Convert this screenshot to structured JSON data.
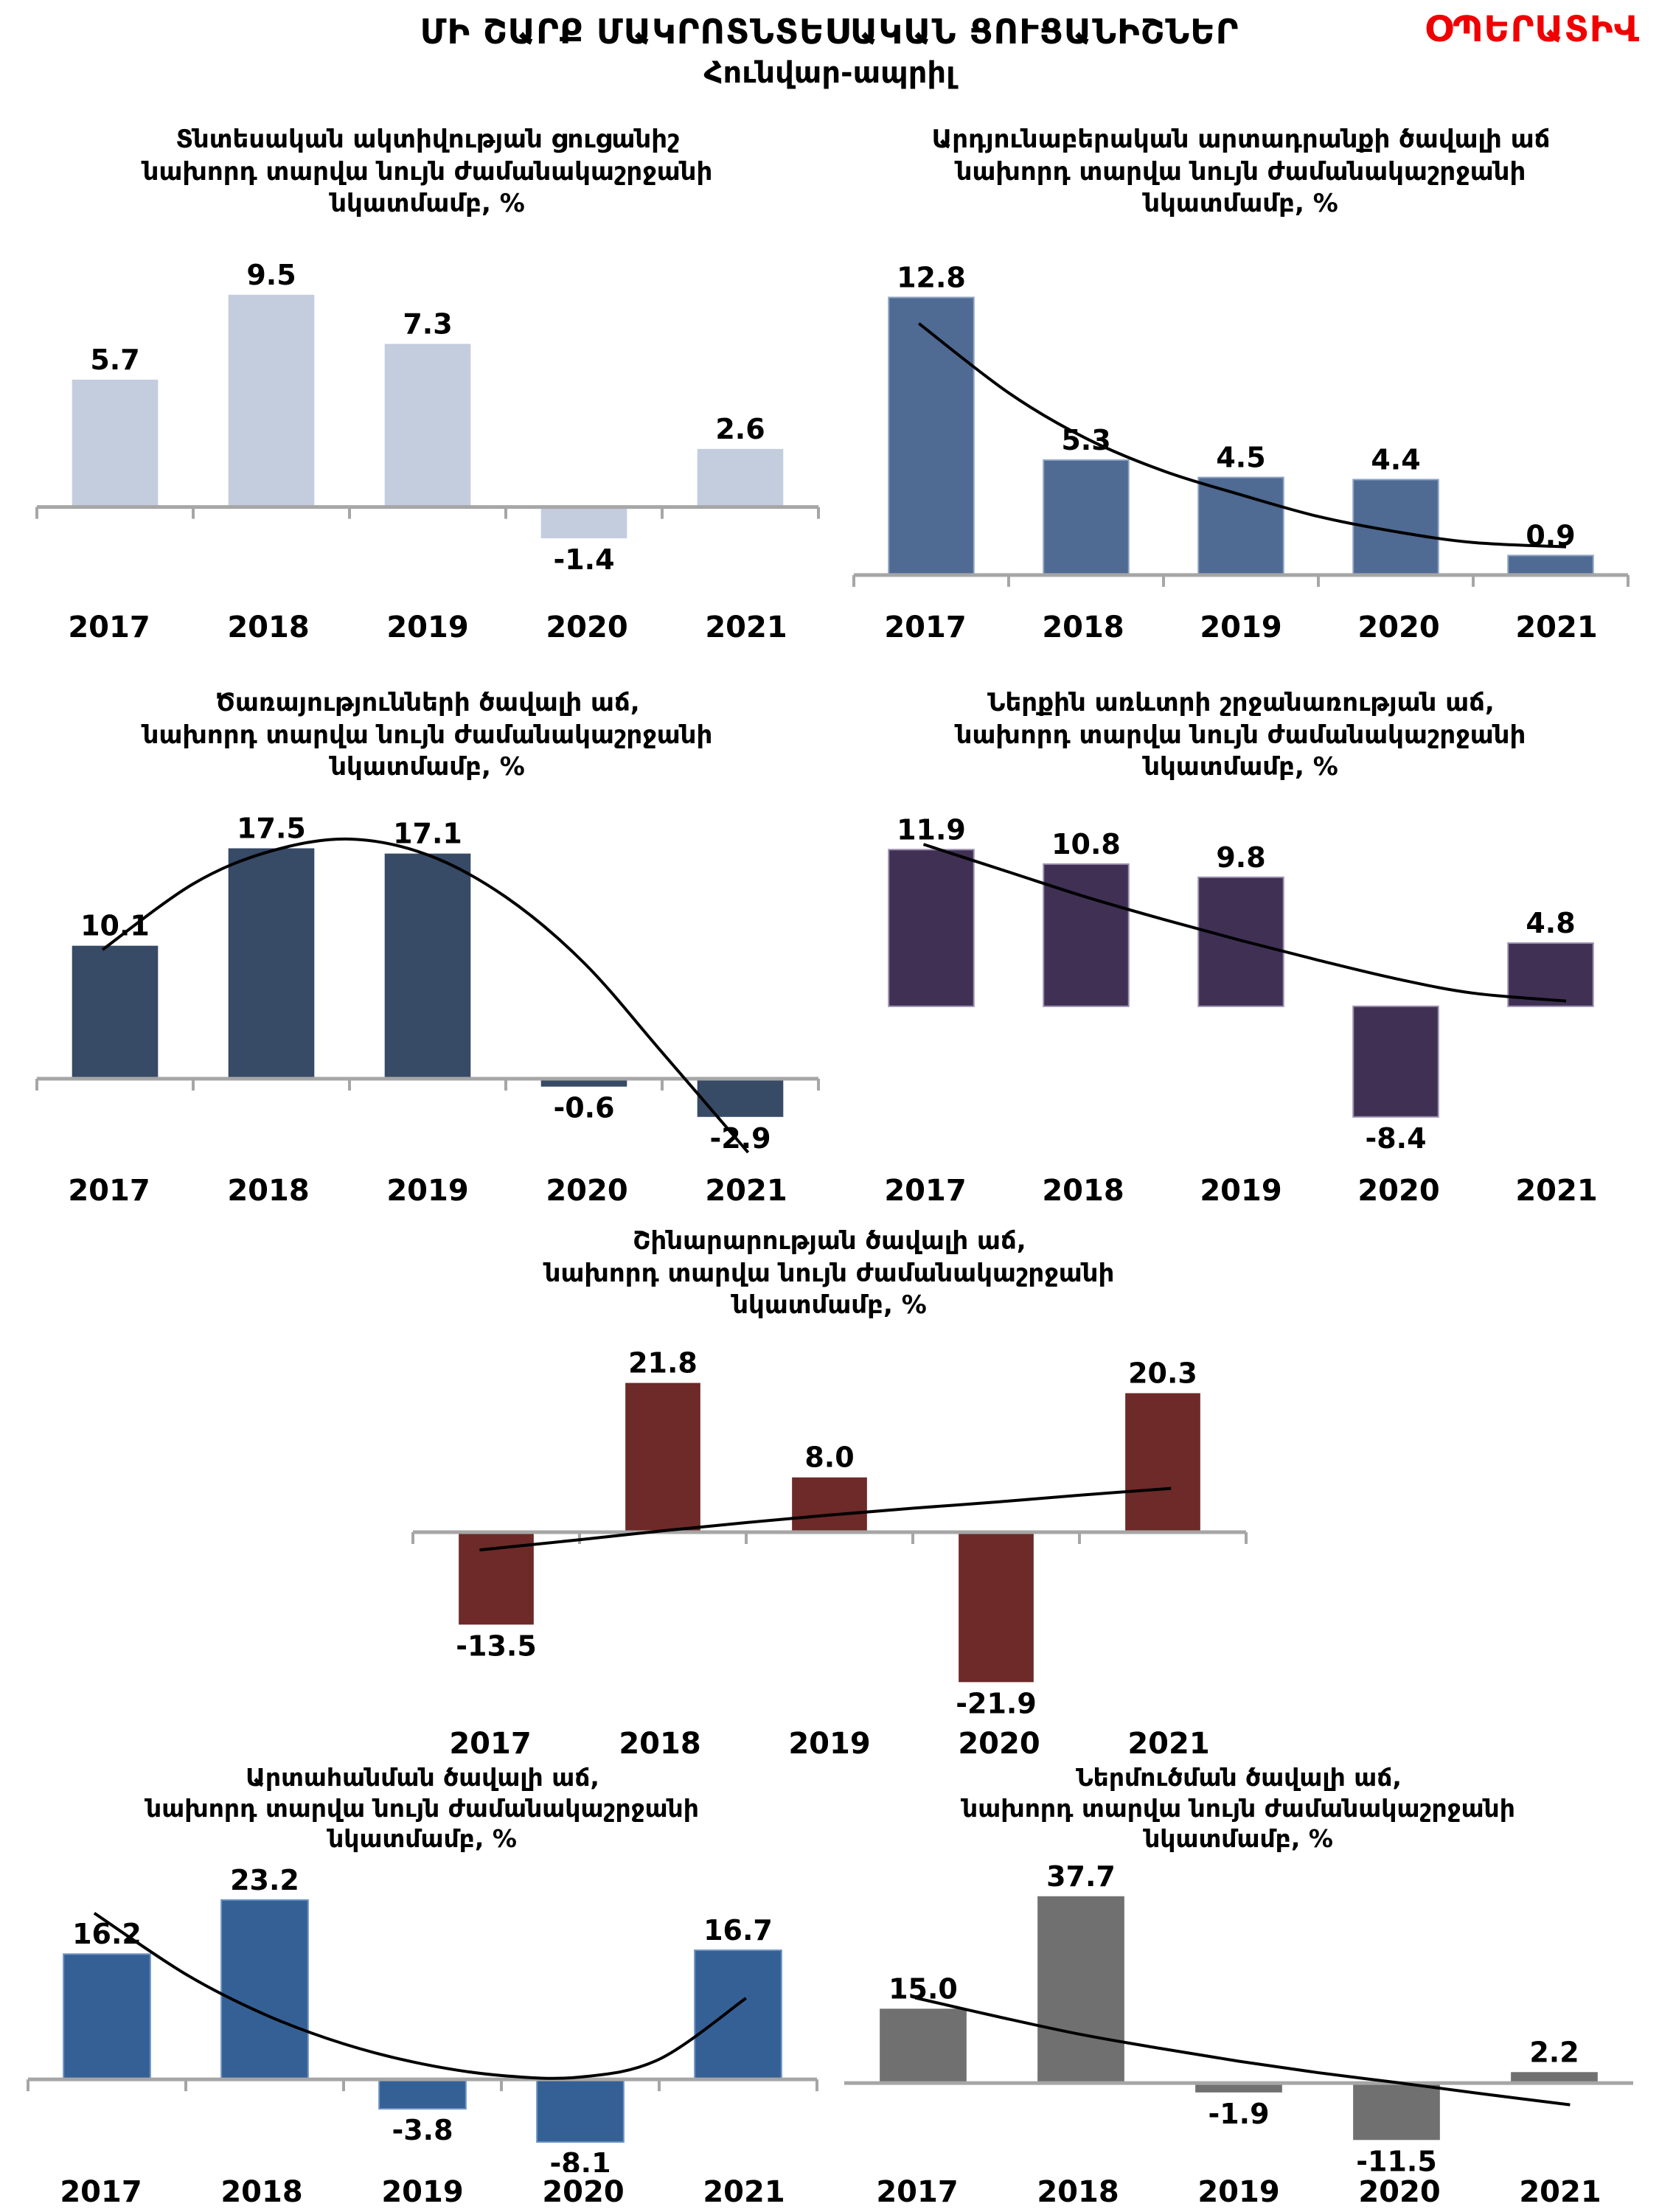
{
  "header": {
    "title": "ՄԻ ՇԱՐՔ ՄԱԿՐՈՏՆՏԵՍԱԿԱՆ ՑՈՒՑԱՆԻՇՆԵՐ",
    "subtitle": "Հունվար-ապրիլ",
    "badge": "ՕՊԵՐԱՏԻՎ",
    "badge_color": "#f00000"
  },
  "chart_data": [
    {
      "id": "economic-activity",
      "type": "bar",
      "title_lines": [
        "Տնտեսական ակտիվության ցուցանիշ",
        "նախորդ տարվա նույն ժամանակաշրջանի",
        "նկատմամբ, %"
      ],
      "categories": [
        "2017",
        "2018",
        "2019",
        "2020",
        "2021"
      ],
      "values": [
        5.7,
        9.5,
        7.3,
        -1.4,
        2.6
      ],
      "bar_color": "#c3cdde",
      "bar_border": "",
      "axis_color": "#a6a6a6",
      "axis_line": true,
      "axis_ticks": true,
      "ylim": [
        -4.5,
        12
      ],
      "trend": null
    },
    {
      "id": "industrial-output",
      "type": "bar",
      "title_lines": [
        "Արդյունաբերական արտադրանքի ծավալի աճ",
        "նախորդ տարվա նույն ժամանակաշրջանի",
        "նկատմամբ, %"
      ],
      "categories": [
        "2017",
        "2018",
        "2019",
        "2020",
        "2021"
      ],
      "values": [
        12.8,
        5.3,
        4.5,
        4.4,
        0.9
      ],
      "bar_color": "#4f6a93",
      "bar_border": "#8ea3c2",
      "axis_color": "#a6a6a6",
      "axis_line": true,
      "axis_ticks": true,
      "ylim": [
        -1.5,
        15.5
      ],
      "trend": [
        [
          -0.08,
          11.6
        ],
        [
          0.5,
          8.4
        ],
        [
          1,
          6.3
        ],
        [
          1.5,
          4.8
        ],
        [
          2,
          3.7
        ],
        [
          2.5,
          2.7
        ],
        [
          3,
          2.0
        ],
        [
          3.5,
          1.5
        ],
        [
          4.1,
          1.3
        ]
      ]
    },
    {
      "id": "services",
      "type": "bar",
      "title_lines": [
        "Ծառայությունների ծավալի աճ,",
        "նախորդ տարվա նույն ժամանակաշրջանի",
        "նկատմամբ, %"
      ],
      "categories": [
        "2017",
        "2018",
        "2019",
        "2020",
        "2021"
      ],
      "values": [
        10.1,
        17.5,
        17.1,
        -0.6,
        -2.9
      ],
      "bar_color": "#374a66",
      "bar_border": "",
      "axis_color": "#a6a6a6",
      "axis_line": true,
      "axis_ticks": true,
      "ylim": [
        -7,
        21
      ],
      "trend": [
        [
          -0.08,
          9.8
        ],
        [
          0.5,
          14.8
        ],
        [
          1,
          17.3
        ],
        [
          1.5,
          18.2
        ],
        [
          2,
          17.0
        ],
        [
          2.5,
          13.8
        ],
        [
          3,
          8.8
        ],
        [
          3.5,
          2.0
        ],
        [
          4.05,
          -5.6
        ]
      ]
    },
    {
      "id": "domestic-trade",
      "type": "bar",
      "title_lines": [
        "Ներքին առևտրի շրջանառության աճ,",
        "նախորդ տարվա նույն ժամանակաշրջանի",
        "նկատմամբ, %"
      ],
      "categories": [
        "2017",
        "2018",
        "2019",
        "2020",
        "2021"
      ],
      "values": [
        11.9,
        10.8,
        9.8,
        -8.4,
        4.8
      ],
      "bar_color": "#3f3054",
      "bar_border": "#9b8fae",
      "axis_color": "#a6a6a6",
      "axis_line": false,
      "axis_ticks": false,
      "ylim": [
        -12.5,
        15.5
      ],
      "trend": [
        [
          -0.05,
          12.3
        ],
        [
          0.5,
          10.2
        ],
        [
          1,
          8.3
        ],
        [
          1.5,
          6.6
        ],
        [
          2,
          5.0
        ],
        [
          2.5,
          3.5
        ],
        [
          3,
          2.1
        ],
        [
          3.5,
          1.0
        ],
        [
          4.1,
          0.4
        ]
      ]
    },
    {
      "id": "construction",
      "type": "bar",
      "title_lines": [
        "Շինարարության ծավալի աճ,",
        "նախորդ տարվա նույն ժամանակաշրջանի",
        "նկատմամբ, %"
      ],
      "categories": [
        "2017",
        "2018",
        "2019",
        "2020",
        "2021"
      ],
      "values": [
        -13.5,
        21.8,
        8.0,
        -21.9,
        20.3
      ],
      "bar_color": "#6d2a28",
      "bar_border": "",
      "axis_color": "#a6a6a6",
      "axis_line": true,
      "axis_ticks": true,
      "ylim": [
        -28,
        28
      ],
      "bar_width_ratio": 0.45,
      "trend": [
        [
          -0.1,
          -2.6
        ],
        [
          0.5,
          -1.1
        ],
        [
          1,
          0.2
        ],
        [
          1.5,
          1.4
        ],
        [
          2,
          2.5
        ],
        [
          2.5,
          3.5
        ],
        [
          3,
          4.4
        ],
        [
          3.5,
          5.4
        ],
        [
          4.05,
          6.4
        ]
      ]
    },
    {
      "id": "exports",
      "type": "bar",
      "title_lines": [
        "Արտահանման ծավալի աճ,",
        "նախորդ տարվա նույն ժամանակաշրջանի",
        "նկատմամբ, %"
      ],
      "categories": [
        "2017",
        "2018",
        "2019",
        "2020",
        "2021"
      ],
      "values": [
        16.2,
        23.2,
        -3.8,
        -8.1,
        16.7
      ],
      "bar_color": "#356095",
      "bar_border": "#6d93c2",
      "axis_color": "#a6a6a6",
      "axis_line": true,
      "axis_ticks": true,
      "ylim": [
        -12,
        29
      ],
      "trend": [
        [
          -0.08,
          21.5
        ],
        [
          0.5,
          13.6
        ],
        [
          1,
          8.4
        ],
        [
          1.5,
          4.6
        ],
        [
          2,
          2.0
        ],
        [
          2.5,
          0.5
        ],
        [
          3,
          0.3
        ],
        [
          3.5,
          2.6
        ],
        [
          4.05,
          10.5
        ]
      ]
    },
    {
      "id": "imports",
      "type": "bar",
      "title_lines": [
        "Ներմուծման ծավալի աճ,",
        "նախորդ տարվա նույն ժամանակաշրջանի",
        "նկատմամբ, %"
      ],
      "categories": [
        "2017",
        "2018",
        "2019",
        "2020",
        "2021"
      ],
      "values": [
        15.0,
        37.7,
        -1.9,
        -11.5,
        2.2
      ],
      "bar_color": "#707070",
      "bar_border": "",
      "axis_color": "#a6a6a6",
      "axis_line": true,
      "axis_ticks": false,
      "ylim": [
        -18,
        46
      ],
      "trend": [
        [
          -0.05,
          17.2
        ],
        [
          0.5,
          13.2
        ],
        [
          1,
          9.8
        ],
        [
          1.5,
          7.0
        ],
        [
          2,
          4.4
        ],
        [
          2.5,
          2.1
        ],
        [
          3,
          0.1
        ],
        [
          3.5,
          -2.0
        ],
        [
          4.1,
          -4.4
        ]
      ]
    }
  ]
}
